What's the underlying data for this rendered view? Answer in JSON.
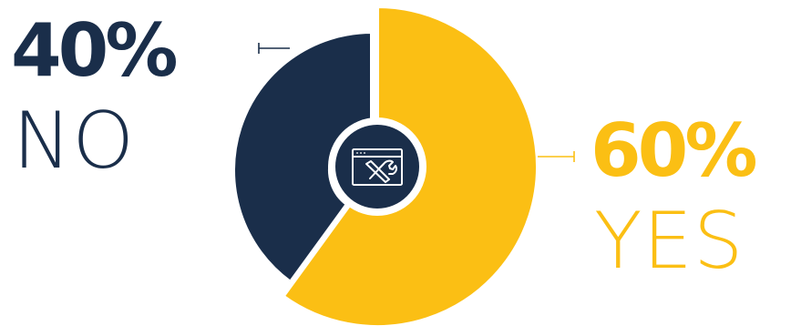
{
  "chart_data": {
    "type": "pie",
    "style": "donut with center icon",
    "slices": [
      {
        "label": "NO",
        "value": 40,
        "percent_label": "40%",
        "color": "#1a2e4a"
      },
      {
        "label": "YES",
        "value": 60,
        "percent_label": "60%",
        "color": "#fbbf14"
      }
    ],
    "legend": "none",
    "grid": false,
    "center_icon": "browser-window-tools-icon"
  },
  "colors": {
    "navy": "#1a2e4a",
    "yellow": "#fbbf14",
    "background": "#ffffff"
  }
}
